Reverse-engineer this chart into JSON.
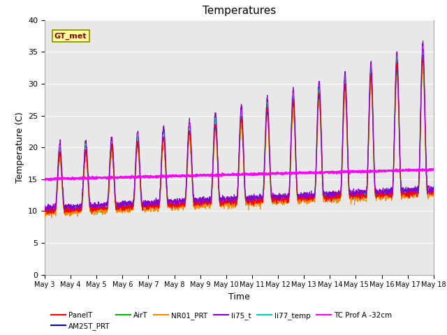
{
  "title": "Temperatures",
  "xlabel": "Time",
  "ylabel": "Temperature (C)",
  "ylim": [
    0,
    40
  ],
  "bg_color": "#e8e8e8",
  "annotation_text": "GT_met",
  "annotation_color": "#8b0000",
  "annotation_bg": "#ffff99",
  "series_colors": {
    "PanelT": "#ff0000",
    "AM25T_PRT": "#0000cc",
    "AirT": "#00bb00",
    "NR01_PRT": "#ff8800",
    "li75_t": "#8800cc",
    "li77_temp": "#00cccc",
    "TC_Prof_A": "#ff00ff"
  },
  "ytick_values": [
    0,
    5,
    10,
    15,
    20,
    25,
    30,
    35,
    40
  ],
  "xtick_labels": [
    "May 3",
    "May 4",
    "May 5",
    "May 6",
    "May 7",
    "May 8",
    "May 9",
    "May 10",
    "May 11",
    "May 12",
    "May 13",
    "May 14",
    "May 15",
    "May 16",
    "May 17",
    "May 18"
  ]
}
